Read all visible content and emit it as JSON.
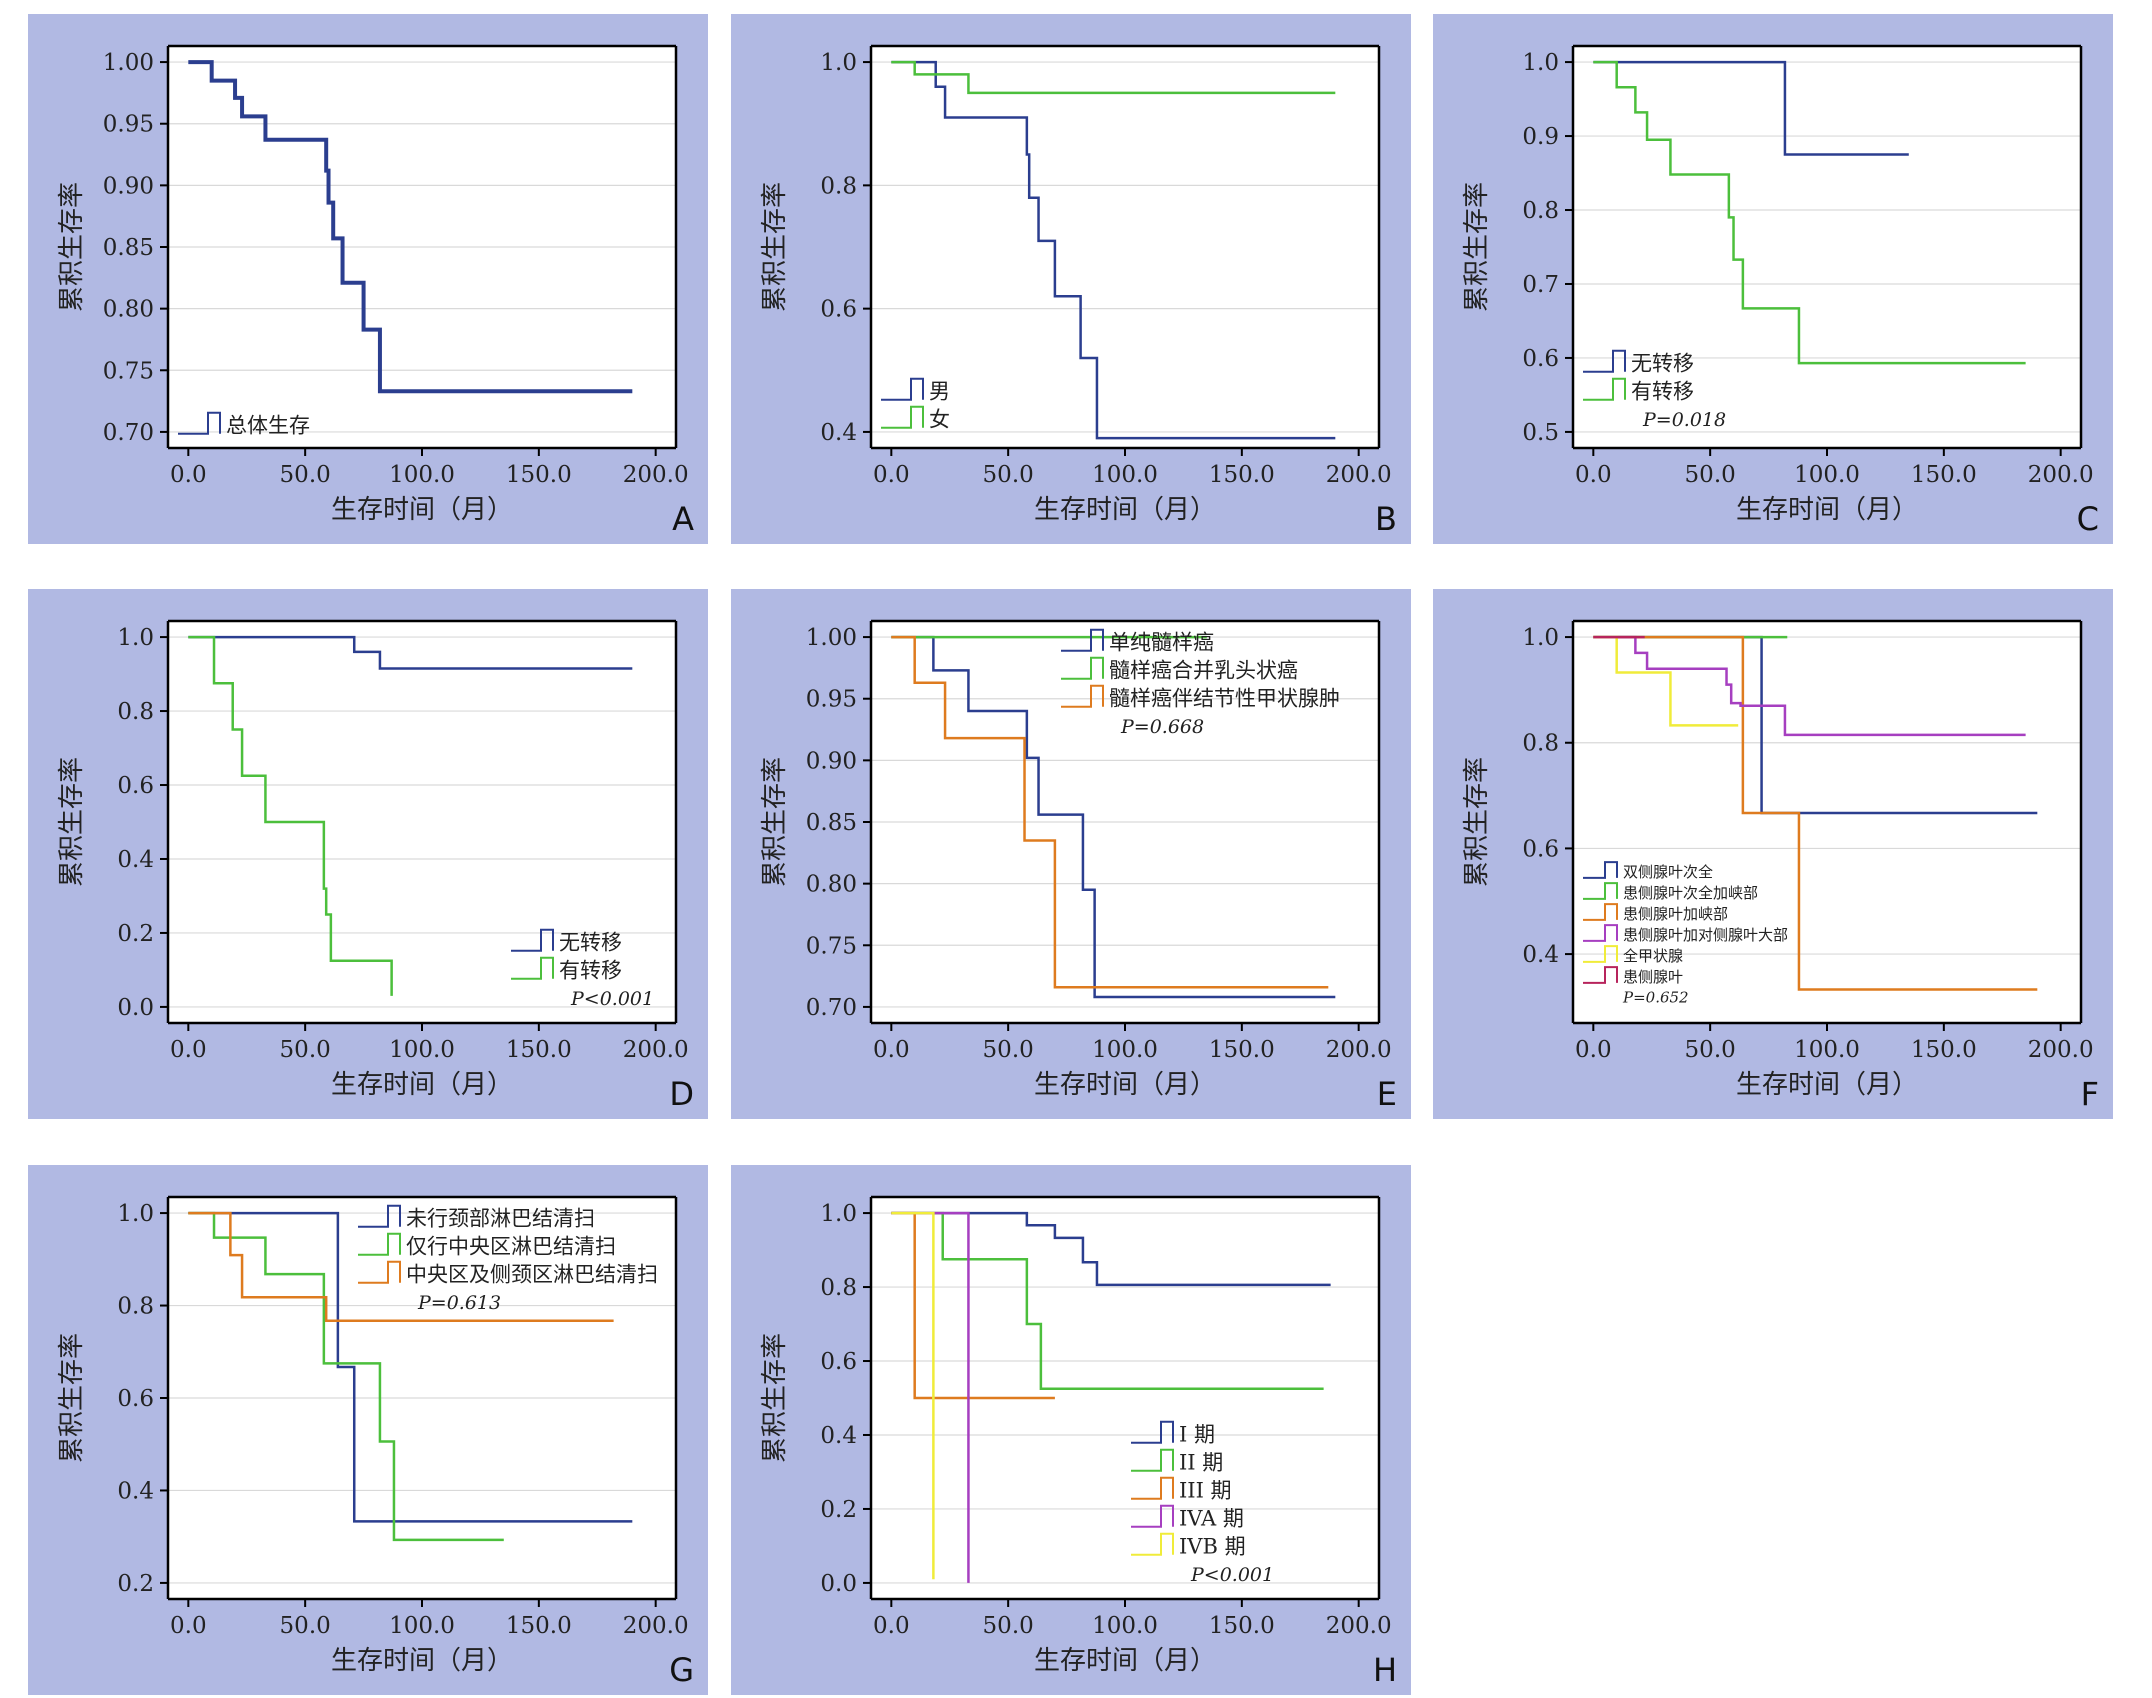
{
  "figure": {
    "colors": {
      "panel_background": "#b1b9e3",
      "plot_background": "#ffffff",
      "gridline": "#d9d9d9",
      "axis": "#000000",
      "blue": "#2b3e8f",
      "green": "#4cbf3c",
      "orange": "#de7b1f",
      "purple": "#a63fc0",
      "yellow": "#f0ec3a",
      "red": "#b7245c"
    }
  },
  "chart_data": [
    {
      "panel": "A",
      "type": "line",
      "ylabel": "累积生存率",
      "xlabel": "生存时间（月）",
      "xlim": [
        0,
        200
      ],
      "ylim": [
        0.7,
        1.0
      ],
      "xticks": [
        0,
        50,
        100,
        150,
        200
      ],
      "xtick_labels": [
        "0.0",
        "50.0",
        "100.0",
        "150.0",
        "200.0"
      ],
      "yticks": [
        0.7,
        0.75,
        0.8,
        0.85,
        0.9,
        0.95,
        1.0
      ],
      "ytick_labels": [
        "0.70",
        "0.75",
        "0.80",
        "0.85",
        "0.90",
        "0.95",
        "1.00"
      ],
      "grid": "horizontal",
      "legend_position": "bottom-left",
      "p_value": "",
      "series": [
        {
          "name": "总体生存",
          "color": "#2b3e8f",
          "width": 4,
          "x": [
            0,
            10,
            20,
            23,
            33,
            59,
            60,
            62,
            66,
            75,
            82,
            87,
            190
          ],
          "y": [
            1.0,
            0.985,
            0.971,
            0.956,
            0.937,
            0.912,
            0.886,
            0.857,
            0.821,
            0.783,
            0.733,
            0.733,
            0.733
          ]
        }
      ]
    },
    {
      "panel": "B",
      "type": "line",
      "ylabel": "累积生存率",
      "xlabel": "生存时间（月）",
      "xlim": [
        0,
        200
      ],
      "ylim": [
        0.4,
        1.0
      ],
      "xticks": [
        0,
        50,
        100,
        150,
        200
      ],
      "xtick_labels": [
        "0.0",
        "50.0",
        "100.0",
        "150.0",
        "200.0"
      ],
      "yticks": [
        0.4,
        0.6,
        0.8,
        1.0
      ],
      "ytick_labels": [
        "0.4",
        "0.6",
        "0.8",
        "1.0"
      ],
      "grid": "horizontal",
      "legend_position": "bottom-left",
      "p_value": "",
      "series": [
        {
          "name": "男",
          "color": "#2b3e8f",
          "width": 2.5,
          "x": [
            0,
            19,
            23,
            58,
            59,
            63,
            70,
            81,
            88,
            190
          ],
          "y": [
            1.0,
            0.96,
            0.91,
            0.85,
            0.78,
            0.71,
            0.62,
            0.52,
            0.39,
            0.39
          ]
        },
        {
          "name": "女",
          "color": "#4cbf3c",
          "width": 2.5,
          "x": [
            0,
            10,
            33,
            190
          ],
          "y": [
            1.0,
            0.98,
            0.95,
            0.95
          ]
        }
      ]
    },
    {
      "panel": "C",
      "type": "line",
      "ylabel": "累积生存率",
      "xlabel": "生存时间（月）",
      "xlim": [
        0,
        200
      ],
      "ylim": [
        0.5,
        1.0
      ],
      "xticks": [
        0,
        50,
        100,
        150,
        200
      ],
      "xtick_labels": [
        "0.0",
        "50.0",
        "100.0",
        "150.0",
        "200.0"
      ],
      "yticks": [
        0.5,
        0.6,
        0.7,
        0.8,
        0.9,
        1.0
      ],
      "ytick_labels": [
        "0.5",
        "0.6",
        "0.7",
        "0.8",
        "0.9",
        "1.0"
      ],
      "grid": "horizontal",
      "legend_position": "bottom-left",
      "p_value": "P=0.018",
      "series": [
        {
          "name": "无转移",
          "color": "#2b3e8f",
          "width": 2.5,
          "x": [
            0,
            82,
            135
          ],
          "y": [
            1.0,
            0.875,
            0.875
          ]
        },
        {
          "name": "有转移",
          "color": "#4cbf3c",
          "width": 2.5,
          "x": [
            0,
            10,
            18,
            23,
            33,
            58,
            60,
            64,
            88,
            185
          ],
          "y": [
            1.0,
            0.966,
            0.932,
            0.895,
            0.848,
            0.79,
            0.733,
            0.667,
            0.593,
            0.593
          ]
        }
      ]
    },
    {
      "panel": "D",
      "type": "line",
      "ylabel": "累积生存率",
      "xlabel": "生存时间（月）",
      "xlim": [
        0,
        200
      ],
      "ylim": [
        0.0,
        1.0
      ],
      "xticks": [
        0,
        50,
        100,
        150,
        200
      ],
      "xtick_labels": [
        "0.0",
        "50.0",
        "100.0",
        "150.0",
        "200.0"
      ],
      "yticks": [
        0.0,
        0.2,
        0.4,
        0.6,
        0.8,
        1.0
      ],
      "ytick_labels": [
        "0.0",
        "0.2",
        "0.4",
        "0.6",
        "0.8",
        "1.0"
      ],
      "grid": "horizontal",
      "legend_position": "bottom-right",
      "p_value": "P<0.001",
      "series": [
        {
          "name": "无转移",
          "color": "#2b3e8f",
          "width": 2.5,
          "x": [
            0,
            71,
            82,
            190
          ],
          "y": [
            1.0,
            0.96,
            0.915,
            0.915
          ]
        },
        {
          "name": "有转移",
          "color": "#4cbf3c",
          "width": 2.5,
          "x": [
            0,
            11,
            19,
            23,
            33,
            58,
            59,
            61,
            64,
            87
          ],
          "y": [
            1.0,
            0.875,
            0.75,
            0.625,
            0.5,
            0.32,
            0.25,
            0.125,
            0.125,
            0.03
          ]
        }
      ]
    },
    {
      "panel": "E",
      "type": "line",
      "ylabel": "累积生存率",
      "xlabel": "生存时间（月）",
      "xlim": [
        0,
        200
      ],
      "ylim": [
        0.7,
        1.0
      ],
      "xticks": [
        0,
        50,
        100,
        150,
        200
      ],
      "xtick_labels": [
        "0.0",
        "50.0",
        "100.0",
        "150.0",
        "200.0"
      ],
      "yticks": [
        0.7,
        0.75,
        0.8,
        0.85,
        0.9,
        0.95,
        1.0
      ],
      "ytick_labels": [
        "0.70",
        "0.75",
        "0.80",
        "0.85",
        "0.90",
        "0.95",
        "1.00"
      ],
      "grid": "horizontal",
      "legend_position": "top-right",
      "p_value": "P=0.668",
      "series": [
        {
          "name": "单纯髓样癌",
          "color": "#2b3e8f",
          "width": 2.5,
          "x": [
            0,
            18,
            33,
            58,
            63,
            82,
            87,
            190
          ],
          "y": [
            1.0,
            0.973,
            0.94,
            0.902,
            0.856,
            0.795,
            0.708,
            0.708
          ]
        },
        {
          "name": "髓样癌合并乳头状癌",
          "color": "#4cbf3c",
          "width": 2.5,
          "x": [
            0,
            135
          ],
          "y": [
            1.0,
            1.0
          ]
        },
        {
          "name": "髓样癌伴结节性甲状腺肿",
          "color": "#de7b1f",
          "width": 2.5,
          "x": [
            0,
            10,
            23,
            57,
            70,
            187
          ],
          "y": [
            1.0,
            0.963,
            0.918,
            0.835,
            0.716,
            0.716
          ]
        }
      ]
    },
    {
      "panel": "F",
      "type": "line",
      "ylabel": "累积生存率",
      "xlabel": "生存时间（月）",
      "xlim": [
        0,
        200
      ],
      "ylim": [
        0.3,
        1.0
      ],
      "xticks": [
        0,
        50,
        100,
        150,
        200
      ],
      "xtick_labels": [
        "0.0",
        "50.0",
        "100.0",
        "150.0",
        "200.0"
      ],
      "yticks": [
        0.4,
        0.6,
        0.8,
        1.0
      ],
      "ytick_labels": [
        "0.4",
        "0.6",
        "0.8",
        "1.0"
      ],
      "grid": "horizontal",
      "legend_position": "bottom-left",
      "legend_small": true,
      "p_value": "P=0.652",
      "series": [
        {
          "name": "双侧腺叶次全",
          "color": "#2b3e8f",
          "width": 2.5,
          "x": [
            0,
            70,
            72,
            190
          ],
          "y": [
            1.0,
            1.0,
            0.667,
            0.667
          ]
        },
        {
          "name": "患侧腺叶次全加峡部",
          "color": "#4cbf3c",
          "width": 2.5,
          "x": [
            0,
            83
          ],
          "y": [
            1.0,
            1.0
          ]
        },
        {
          "name": "患侧腺叶加峡部",
          "color": "#de7b1f",
          "width": 2.5,
          "x": [
            0,
            64,
            88,
            190
          ],
          "y": [
            1.0,
            0.667,
            0.333,
            0.333
          ]
        },
        {
          "name": "患侧腺叶加对侧腺叶大部",
          "color": "#a63fc0",
          "width": 2.5,
          "x": [
            0,
            18,
            23,
            57,
            59,
            63,
            82,
            185
          ],
          "y": [
            1.0,
            0.97,
            0.94,
            0.91,
            0.875,
            0.87,
            0.815,
            0.815
          ]
        },
        {
          "name": "全甲状腺",
          "color": "#f0ec3a",
          "width": 2.5,
          "x": [
            0,
            10,
            33,
            62
          ],
          "y": [
            1.0,
            0.933,
            0.833,
            0.833
          ]
        },
        {
          "name": "患侧腺叶",
          "color": "#b7245c",
          "width": 2.5,
          "x": [
            0,
            22
          ],
          "y": [
            1.0,
            1.0
          ]
        }
      ]
    },
    {
      "panel": "G",
      "type": "line",
      "ylabel": "累积生存率",
      "xlabel": "生存时间（月）",
      "xlim": [
        0,
        200
      ],
      "ylim": [
        0.2,
        1.0
      ],
      "xticks": [
        0,
        50,
        100,
        150,
        200
      ],
      "xtick_labels": [
        "0.0",
        "50.0",
        "100.0",
        "150.0",
        "200.0"
      ],
      "yticks": [
        0.2,
        0.4,
        0.6,
        0.8,
        1.0
      ],
      "ytick_labels": [
        "0.2",
        "0.4",
        "0.6",
        "0.8",
        "1.0"
      ],
      "grid": "horizontal",
      "legend_position": "top-right",
      "p_value": "P=0.613",
      "series": [
        {
          "name": "未行颈部淋巴结清扫",
          "color": "#2b3e8f",
          "width": 2.5,
          "x": [
            0,
            64,
            71,
            190
          ],
          "y": [
            1.0,
            0.667,
            0.333,
            0.333
          ]
        },
        {
          "name": "仅行中央区淋巴结清扫",
          "color": "#4cbf3c",
          "width": 2.5,
          "x": [
            0,
            11,
            33,
            58,
            82,
            88,
            135
          ],
          "y": [
            1.0,
            0.947,
            0.868,
            0.675,
            0.506,
            0.293,
            0.293
          ]
        },
        {
          "name": "中央区及侧颈区淋巴结清扫",
          "color": "#de7b1f",
          "width": 2.5,
          "x": [
            0,
            18,
            23,
            59,
            182
          ],
          "y": [
            1.0,
            0.909,
            0.818,
            0.767,
            0.767
          ]
        }
      ]
    },
    {
      "panel": "H",
      "type": "line",
      "ylabel": "累积生存率",
      "xlabel": "生存时间（月）",
      "xlim": [
        0,
        200
      ],
      "ylim": [
        0.0,
        1.0
      ],
      "xticks": [
        0,
        50,
        100,
        150,
        200
      ],
      "xtick_labels": [
        "0.0",
        "50.0",
        "100.0",
        "150.0",
        "200.0"
      ],
      "yticks": [
        0.0,
        0.2,
        0.4,
        0.6,
        0.8,
        1.0
      ],
      "ytick_labels": [
        "0.0",
        "0.2",
        "0.4",
        "0.6",
        "0.8",
        "1.0"
      ],
      "grid": "horizontal",
      "legend_position": "bottom-right",
      "p_value": "P<0.001",
      "series": [
        {
          "name": "I 期",
          "color": "#2b3e8f",
          "width": 2.5,
          "x": [
            0,
            58,
            70,
            82,
            88,
            188
          ],
          "y": [
            1.0,
            0.967,
            0.933,
            0.867,
            0.806,
            0.806
          ]
        },
        {
          "name": "II 期",
          "color": "#4cbf3c",
          "width": 2.5,
          "x": [
            0,
            22,
            58,
            64,
            185
          ],
          "y": [
            1.0,
            0.875,
            0.7,
            0.525,
            0.525
          ]
        },
        {
          "name": "III 期",
          "color": "#de7b1f",
          "width": 2.5,
          "x": [
            0,
            10,
            70
          ],
          "y": [
            1.0,
            0.5,
            0.5
          ]
        },
        {
          "name": "IVA 期",
          "color": "#a63fc0",
          "width": 2.5,
          "x": [
            0,
            33,
            33
          ],
          "y": [
            1.0,
            1.0,
            0.0
          ]
        },
        {
          "name": "IVB 期",
          "color": "#f0ec3a",
          "width": 2.5,
          "x": [
            0,
            18,
            18
          ],
          "y": [
            1.0,
            1.0,
            0.01
          ]
        }
      ]
    }
  ]
}
